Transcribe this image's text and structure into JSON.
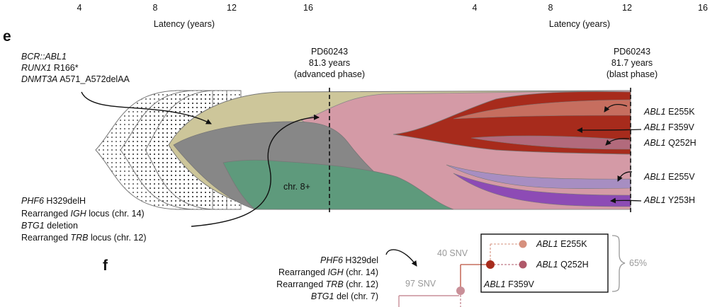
{
  "top_axes": {
    "left": {
      "ticks": [
        "4",
        "8",
        "12",
        "16"
      ],
      "label": "Latency (years)"
    },
    "right": {
      "ticks": [
        "4",
        "8",
        "12",
        "16"
      ],
      "label": "Latency (years)"
    }
  },
  "panel_e": {
    "letter": "e",
    "founder_lines": [
      {
        "gene": "BCR::ABL1",
        "rest": ""
      },
      {
        "gene": "RUNX1",
        "rest": " R166*"
      },
      {
        "gene": "DNMT3A",
        "rest": " A571_A572delAA"
      }
    ],
    "sample1": {
      "id": "PD60243",
      "age": "81.3 years",
      "phase": "(advanced phase)"
    },
    "sample2": {
      "id": "PD60243",
      "age": "81.7 years",
      "phase": "(blast phase)"
    },
    "clone_label": "chr. 8+",
    "bottom_lines": [
      {
        "gene": "PHF6",
        "rest": " H329delH"
      },
      {
        "pre": "Rearranged ",
        "gene": "IGH",
        "rest": " locus (chr. 14)"
      },
      {
        "gene": "BTG1",
        "rest": " deletion"
      },
      {
        "pre": "Rearranged ",
        "gene": "TRB",
        "rest": " locus (chr. 12)"
      }
    ],
    "mutations": [
      {
        "gene": "ABL1",
        "rest": " E255K"
      },
      {
        "gene": "ABL1",
        "rest": " F359V"
      },
      {
        "gene": "ABL1",
        "rest": " Q252H"
      },
      {
        "gene": "ABL1",
        "rest": " E255V"
      },
      {
        "gene": "ABL1",
        "rest": " Y253H"
      }
    ],
    "colors": {
      "dotted_fill": "#ffffff",
      "olive": "#cdc69a",
      "gray": "#878787",
      "green": "#5e9a7c",
      "pink": "#d49aa6",
      "salmon": "#c66e5f",
      "red": "#a72b1c",
      "mauve": "#b26a7c",
      "lilac": "#a78ec2",
      "purple": "#8d4bb5"
    }
  },
  "panel_f": {
    "letter": "f",
    "left_lines": [
      {
        "gene": "PHF6",
        "rest": " H329del"
      },
      {
        "pre": "Rearranged ",
        "gene": "IGH",
        "rest": " (chr. 14)"
      },
      {
        "pre": "Rearranged ",
        "gene": "TRB",
        "rest": " (chr. 12)"
      },
      {
        "gene": "BTG1",
        "rest": " del (chr. 7)"
      }
    ],
    "snv_97": "97 SNV",
    "snv_40": "40 SNV",
    "box_items": [
      {
        "gene": "ABL1",
        "rest": " E255K"
      },
      {
        "gene": "ABL1",
        "rest": " Q252H"
      },
      {
        "gene": "ABL1",
        "rest": " F359V"
      }
    ],
    "percent": "65%",
    "colors": {
      "node_light": "#c98f98",
      "node_dark": "#a72b1c",
      "node_e255k": "#d6907e",
      "node_q252h": "#b0596a"
    }
  }
}
